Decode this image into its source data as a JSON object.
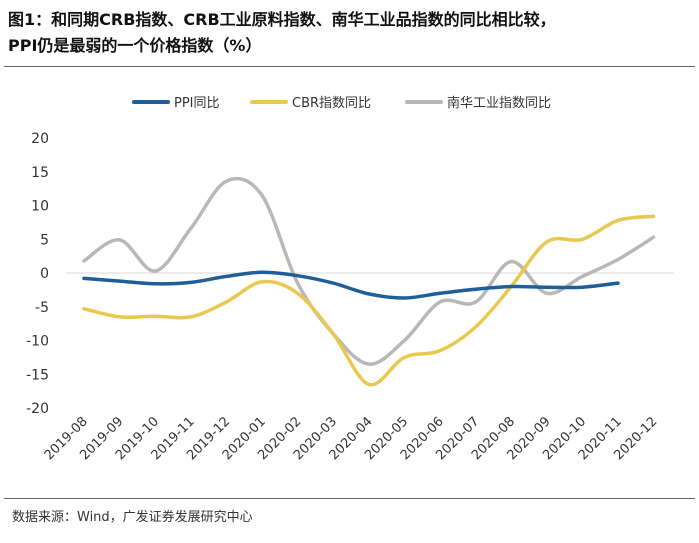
{
  "page": {
    "title_line1": "图1：和同期CRB指数、CRB工业原料指数、南华工业品指数的同比相比较，",
    "title_line2": "PPI仍是最弱的一个价格指数（%）",
    "source": "数据来源：Wind，广发证券发展研究中心"
  },
  "chart_data": {
    "type": "line",
    "title": "和同期CRB指数、CRB工业原料指数、南华工业品指数的同比相比较，PPI仍是最弱的一个价格指数（%）",
    "xlabel": "",
    "ylabel": "",
    "ylim": [
      -20,
      20
    ],
    "yticks": [
      -20,
      -15,
      -10,
      -5,
      0,
      5,
      10,
      15,
      20
    ],
    "grid": "horizontal-zero-line",
    "legend_position": "top",
    "categories": [
      "2019-08",
      "2019-09",
      "2019-10",
      "2019-11",
      "2019-12",
      "2020-01",
      "2020-02",
      "2020-03",
      "2020-04",
      "2020-05",
      "2020-06",
      "2020-07",
      "2020-08",
      "2020-09",
      "2020-10",
      "2020-11",
      "2020-12"
    ],
    "series": [
      {
        "name": "PPI同比",
        "color": "#1f5f99",
        "values": [
          -0.8,
          -1.2,
          -1.6,
          -1.4,
          -0.5,
          0.1,
          -0.4,
          -1.5,
          -3.1,
          -3.7,
          -3.0,
          -2.4,
          -2.0,
          -2.1,
          -2.1,
          -1.5,
          null
        ]
      },
      {
        "name": "CBR指数同比",
        "color": "#e8c84f",
        "values": [
          -5.3,
          -6.5,
          -6.4,
          -6.5,
          -4.3,
          -1.3,
          -3.0,
          -9.0,
          -16.5,
          -12.5,
          -11.5,
          -8.0,
          -2.0,
          4.6,
          5.0,
          7.8,
          8.4
        ]
      },
      {
        "name": "南华工业指数同比",
        "color": "#b8b8b8",
        "values": [
          1.8,
          4.9,
          0.3,
          6.6,
          13.6,
          11.5,
          -1.5,
          -9.0,
          -13.5,
          -10.0,
          -4.3,
          -4.3,
          1.7,
          -3.0,
          -0.5,
          2.0,
          5.3
        ]
      }
    ]
  }
}
